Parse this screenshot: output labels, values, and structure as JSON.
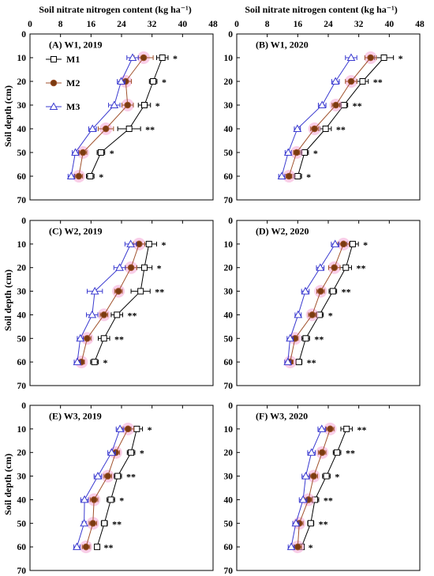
{
  "chart_data": {
    "type": "line",
    "x_title": "Soil nitrate nitrogen content (kg ha⁻¹)",
    "y_title": "Soil depth (cm)",
    "x_ticks": [
      0,
      8,
      16,
      24,
      32,
      40,
      48
    ],
    "y_ticks": [
      0,
      10,
      20,
      30,
      40,
      50,
      60,
      70
    ],
    "xlim": [
      0,
      48
    ],
    "ylim": [
      0,
      70
    ],
    "depths": [
      10,
      20,
      30,
      40,
      50,
      60
    ],
    "colors": {
      "M1": "#000000",
      "M2": "#a0522d",
      "M3": "#3a3ad0",
      "halo": "#f4a6d6"
    },
    "legend": [
      "M1",
      "M2",
      "M3"
    ],
    "panels": [
      {
        "title": "(A) W1, 2019",
        "series": [
          {
            "name": "M1",
            "values": [
              34.7,
              32.3,
              30.0,
              26.0,
              18.6,
              15.8
            ],
            "err": [
              1.5,
              1.0,
              1.6,
              3.0,
              1.0,
              1.0
            ]
          },
          {
            "name": "M2",
            "values": [
              29.8,
              25.1,
              25.6,
              19.9,
              13.9,
              12.8
            ],
            "err": [
              2.5,
              1.5,
              1.5,
              2.0,
              1.0,
              1.0
            ]
          },
          {
            "name": "M3",
            "values": [
              26.9,
              23.9,
              22.1,
              16.4,
              11.9,
              10.8
            ],
            "err": [
              1.5,
              1.0,
              1.5,
              1.0,
              0.8,
              0.8
            ]
          }
        ],
        "sig": [
          "*",
          "*",
          "*",
          "**",
          "*",
          "*"
        ]
      },
      {
        "title": "(B) W1, 2020",
        "series": [
          {
            "name": "M1",
            "values": [
              38.6,
              33.0,
              28.1,
              23.3,
              17.8,
              16.0
            ],
            "err": [
              2.5,
              1.5,
              1.0,
              1.5,
              1.0,
              1.0
            ]
          },
          {
            "name": "M2",
            "values": [
              35.1,
              30.0,
              26.0,
              20.4,
              15.7,
              13.7
            ],
            "err": [
              1.5,
              1.5,
              1.0,
              1.0,
              0.8,
              0.8
            ]
          },
          {
            "name": "M3",
            "values": [
              30.0,
              25.9,
              22.4,
              15.9,
              13.5,
              11.8
            ],
            "err": [
              1.5,
              1.0,
              1.0,
              0.8,
              0.8,
              0.8
            ]
          }
        ],
        "sig": [
          "*",
          "**",
          "**",
          "**",
          "*",
          "*"
        ]
      },
      {
        "title": "(C) W2, 2019",
        "series": [
          {
            "name": "M1",
            "values": [
              31.2,
              30.0,
              29.0,
              22.8,
              19.4,
              16.9
            ],
            "err": [
              2.0,
              2.0,
              2.5,
              1.5,
              1.5,
              1.0
            ]
          },
          {
            "name": "M2",
            "values": [
              28.6,
              26.5,
              23.2,
              19.4,
              15.0,
              13.5
            ],
            "err": [
              1.5,
              1.5,
              1.0,
              1.0,
              1.0,
              0.8
            ]
          },
          {
            "name": "M3",
            "values": [
              26.4,
              23.5,
              17.0,
              16.3,
              13.2,
              12.4
            ],
            "err": [
              1.5,
              1.5,
              2.0,
              1.5,
              0.8,
              0.8
            ]
          }
        ],
        "sig": [
          "*",
          "*",
          "**",
          "**",
          "**",
          "*"
        ]
      },
      {
        "title": "(D) W2, 2020",
        "series": [
          {
            "name": "M1",
            "values": [
              30.4,
              28.6,
              25.2,
              21.7,
              18.1,
              16.3
            ],
            "err": [
              1.5,
              1.5,
              1.0,
              1.0,
              1.0,
              0.8
            ]
          },
          {
            "name": "M2",
            "values": [
              28.0,
              25.6,
              22.0,
              19.8,
              15.3,
              14.0
            ],
            "err": [
              1.5,
              1.5,
              1.0,
              1.0,
              0.8,
              0.8
            ]
          },
          {
            "name": "M3",
            "values": [
              25.8,
              21.9,
              18.0,
              16.1,
              14.0,
              13.4
            ],
            "err": [
              1.0,
              1.0,
              1.0,
              0.8,
              0.8,
              0.8
            ]
          }
        ],
        "sig": [
          "*",
          "**",
          "**",
          "*",
          "**",
          "**"
        ]
      },
      {
        "title": "(E) W3, 2019",
        "series": [
          {
            "name": "M1",
            "values": [
              28.0,
              26.5,
              23.0,
              21.2,
              19.5,
              17.6
            ],
            "err": [
              1.5,
              1.0,
              1.0,
              1.0,
              0.8,
              0.5
            ]
          },
          {
            "name": "M2",
            "values": [
              25.7,
              22.5,
              20.4,
              16.8,
              16.5,
              14.7
            ],
            "err": [
              1.5,
              1.0,
              1.0,
              1.0,
              1.0,
              1.0
            ]
          },
          {
            "name": "M3",
            "values": [
              23.6,
              21.4,
              17.8,
              14.3,
              14.2,
              12.3
            ],
            "err": [
              1.0,
              1.0,
              1.0,
              1.0,
              0.5,
              0.8
            ]
          }
        ],
        "sig": [
          "*",
          "*",
          "**",
          "*",
          "**",
          "**"
        ]
      },
      {
        "title": "(F) W3, 2020",
        "series": [
          {
            "name": "M1",
            "values": [
              28.8,
              26.3,
              23.5,
              20.5,
              19.4,
              17.0
            ],
            "err": [
              1.5,
              1.0,
              1.0,
              1.0,
              0.8,
              0.5
            ]
          },
          {
            "name": "M2",
            "values": [
              24.5,
              22.4,
              20.2,
              18.8,
              16.4,
              16.0
            ],
            "err": [
              1.0,
              1.0,
              1.0,
              1.0,
              1.0,
              1.0
            ]
          },
          {
            "name": "M3",
            "values": [
              22.3,
              19.6,
              18.1,
              17.4,
              15.5,
              14.3
            ],
            "err": [
              1.0,
              1.0,
              1.0,
              1.0,
              0.8,
              0.8
            ]
          }
        ],
        "sig": [
          "**",
          "**",
          "*",
          "**",
          "**",
          "*"
        ]
      }
    ]
  }
}
